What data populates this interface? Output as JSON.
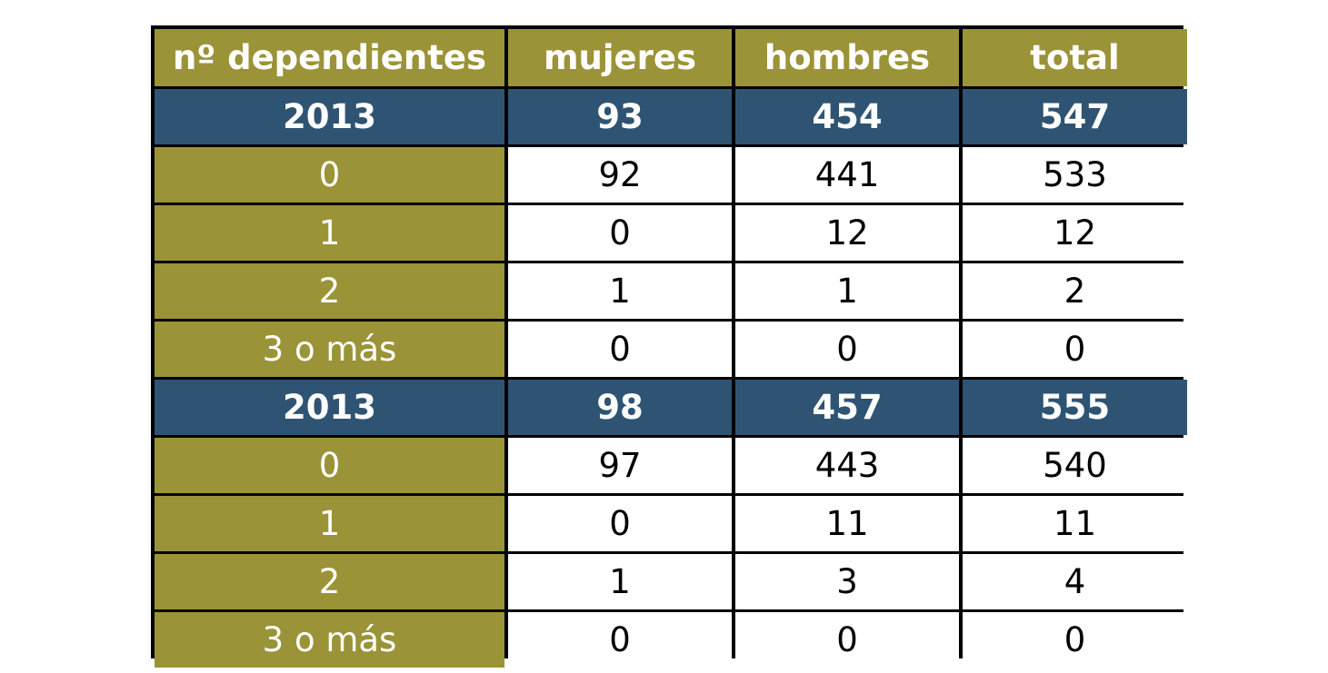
{
  "chart_data": {
    "type": "table",
    "columns": [
      "nº dependientes",
      "mujeres",
      "hombres",
      "total"
    ],
    "groups": [
      {
        "label": "2013",
        "totals": [
          "93",
          "454",
          "547"
        ],
        "rows": [
          {
            "label": "0",
            "values": [
              "92",
              "441",
              "533"
            ]
          },
          {
            "label": "1",
            "values": [
              "0",
              "12",
              "12"
            ]
          },
          {
            "label": "2",
            "values": [
              "1",
              "1",
              "2"
            ]
          },
          {
            "label": "3 o más",
            "values": [
              "0",
              "0",
              "0"
            ]
          }
        ]
      },
      {
        "label": "2013",
        "totals": [
          "98",
          "457",
          "555"
        ],
        "rows": [
          {
            "label": "0",
            "values": [
              "97",
              "443",
              "540"
            ]
          },
          {
            "label": "1",
            "values": [
              "0",
              "11",
              "11"
            ]
          },
          {
            "label": "2",
            "values": [
              "1",
              "3",
              "4"
            ]
          },
          {
            "label": "3 o más",
            "values": [
              "0",
              "0",
              "0"
            ]
          }
        ]
      }
    ]
  },
  "colors": {
    "header": "#9b9337",
    "year_row": "#2f5473",
    "label_col": "#9b9337",
    "value_bg": "#ffffff",
    "grid": "#000000"
  }
}
